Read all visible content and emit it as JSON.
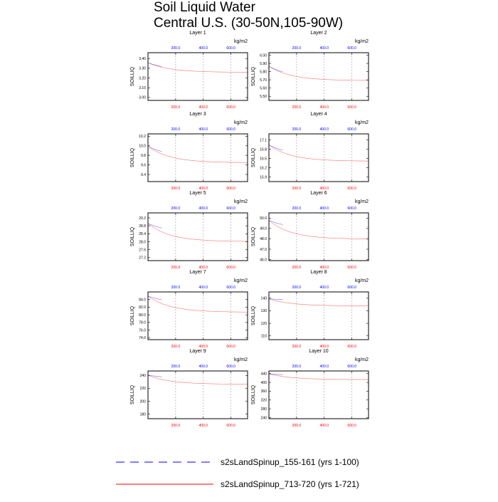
{
  "title": {
    "line1": "Soil Liquid Water",
    "line2": "Central U.S. (30-50N,105-90W)"
  },
  "legend": {
    "items": [
      {
        "label": "s2sLandSpinup_155-161 (yrs 1-100)",
        "color": "#0000ff",
        "dash": "dashed"
      },
      {
        "label": "s2sLandSpinup_713-720 (yrs 1-721)",
        "color": "#ff0000",
        "dash": "solid"
      }
    ]
  },
  "colors": {
    "series_blue": "#0000ff",
    "series_red": "#ff0000",
    "top_axis_labels": "#0000ff",
    "bottom_axis_labels": "#ff0000",
    "grid": "#888888"
  },
  "chart_data": [
    {
      "type": "line",
      "title": "Layer 1",
      "units": "kg/m2",
      "ylabel": "SOILLIQ",
      "yticks": [
        "3.00",
        "3.10",
        "3.20",
        "3.30",
        "3.40"
      ],
      "ylim": [
        2.97,
        3.46
      ],
      "top_xticks": [
        "200.0",
        "400.0",
        "600.0"
      ],
      "top_xlim": [
        0,
        720
      ],
      "bottom_xticks": [
        "200.0",
        "400.0",
        "600.0"
      ],
      "bottom_xlim": [
        0,
        720
      ],
      "grid": "vertical dashed",
      "series": [
        {
          "name": "s2sLandSpinup_155-161 (yrs 1-100)",
          "color": "#0000ff",
          "x_range": [
            0,
            100
          ],
          "mean_start": 3.32,
          "mean_end": 3.24,
          "amp_start": 0.13,
          "amp_end": 0.12
        },
        {
          "name": "s2sLandSpinup_713-720 (yrs 1-721)",
          "color": "#ff0000",
          "x_range": [
            0,
            721
          ],
          "mean_start": 3.32,
          "mean_end": 3.23,
          "amp_start": 0.13,
          "amp_end": 0.1
        }
      ]
    },
    {
      "type": "line",
      "title": "Layer 2",
      "units": "kg/m2",
      "ylabel": "SOILLIQ",
      "yticks": [
        "5.50",
        "5.60",
        "5.70",
        "5.80",
        "5.90",
        "6.00"
      ],
      "ylim": [
        5.45,
        6.03
      ],
      "top_xticks": [
        "200.0",
        "400.0",
        "600.0"
      ],
      "top_xlim": [
        0,
        720
      ],
      "bottom_xticks": [
        "200.0",
        "400.0",
        "600.0"
      ],
      "bottom_xlim": [
        0,
        720
      ],
      "grid": "vertical dashed",
      "series": [
        {
          "name": "s2sLandSpinup_155-161 (yrs 1-100)",
          "color": "#0000ff",
          "x_range": [
            0,
            100
          ],
          "mean_start": 5.82,
          "mean_end": 5.69,
          "amp_start": 0.16,
          "amp_end": 0.11
        },
        {
          "name": "s2sLandSpinup_713-720 (yrs 1-721)",
          "color": "#ff0000",
          "x_range": [
            0,
            721
          ],
          "mean_start": 5.82,
          "mean_end": 5.66,
          "amp_start": 0.16,
          "amp_end": 0.11
        }
      ]
    },
    {
      "type": "line",
      "title": "Layer 3",
      "units": "kg/m2",
      "ylabel": "SOILLIQ",
      "yticks": [
        "9.4",
        "9.6",
        "9.8",
        "10.0",
        "10.2"
      ],
      "ylim": [
        9.25,
        10.25
      ],
      "top_xticks": [
        "200.0",
        "400.0",
        "600.0"
      ],
      "top_xlim": [
        0,
        720
      ],
      "bottom_xticks": [
        "200.0",
        "400.0",
        "600.0"
      ],
      "bottom_xlim": [
        0,
        720
      ],
      "grid": "vertical dashed",
      "series": [
        {
          "name": "s2sLandSpinup_155-161 (yrs 1-100)",
          "color": "#0000ff",
          "x_range": [
            0,
            100
          ],
          "mean_start": 9.92,
          "mean_end": 9.7,
          "amp_start": 0.25,
          "amp_end": 0.18
        },
        {
          "name": "s2sLandSpinup_713-720 (yrs 1-721)",
          "color": "#ff0000",
          "x_range": [
            0,
            721
          ],
          "mean_start": 9.92,
          "mean_end": 9.6,
          "amp_start": 0.25,
          "amp_end": 0.16
        }
      ]
    },
    {
      "type": "line",
      "title": "Layer 4",
      "units": "kg/m2",
      "ylabel": "SOILLIQ",
      "yticks": [
        "15.9",
        "16.2",
        "16.5",
        "16.8",
        "17.1"
      ],
      "ylim": [
        15.75,
        17.3
      ],
      "top_xticks": [
        "200.0",
        "400.0",
        "600.0"
      ],
      "top_xlim": [
        0,
        720
      ],
      "bottom_xticks": [
        "200.0",
        "400.0",
        "600.0"
      ],
      "bottom_xlim": [
        0,
        720
      ],
      "grid": "vertical dashed",
      "series": [
        {
          "name": "s2sLandSpinup_155-161 (yrs 1-100)",
          "color": "#0000ff",
          "x_range": [
            0,
            100
          ],
          "mean_start": 16.85,
          "mean_end": 16.5,
          "amp_start": 0.32,
          "amp_end": 0.25
        },
        {
          "name": "s2sLandSpinup_713-720 (yrs 1-721)",
          "color": "#ff0000",
          "x_range": [
            0,
            721
          ],
          "mean_start": 16.85,
          "mean_end": 16.35,
          "amp_start": 0.32,
          "amp_end": 0.22
        }
      ]
    },
    {
      "type": "line",
      "title": "Layer 5",
      "units": "kg/m2",
      "ylabel": "SOILLIQ",
      "yticks": [
        "27.2",
        "27.6",
        "28.0",
        "28.4",
        "28.8",
        "29.2"
      ],
      "ylim": [
        27.05,
        29.45
      ],
      "top_xticks": [
        "200.0",
        "400.0",
        "600.0"
      ],
      "top_xlim": [
        0,
        720
      ],
      "bottom_xticks": [
        "200.0",
        "400.0",
        "600.0"
      ],
      "bottom_xlim": [
        0,
        720
      ],
      "grid": "vertical dashed",
      "series": [
        {
          "name": "s2sLandSpinup_155-161 (yrs 1-100)",
          "color": "#0000ff",
          "x_range": [
            0,
            100
          ],
          "mean_start": 28.75,
          "mean_end": 28.3,
          "amp_start": 0.6,
          "amp_end": 0.45
        },
        {
          "name": "s2sLandSpinup_713-720 (yrs 1-721)",
          "color": "#ff0000",
          "x_range": [
            0,
            721
          ],
          "mean_start": 28.75,
          "mean_end": 27.9,
          "amp_start": 0.6,
          "amp_end": 0.38
        }
      ]
    },
    {
      "type": "line",
      "title": "Layer 6",
      "units": "kg/m2",
      "ylabel": "SOILLIQ",
      "yticks": [
        "46.0",
        "47.0",
        "48.0",
        "49.0",
        "50.0"
      ],
      "ylim": [
        45.9,
        50.5
      ],
      "top_xticks": [
        "200.0",
        "400.0",
        "600.0"
      ],
      "top_xlim": [
        0,
        720
      ],
      "bottom_xticks": [
        "200.0",
        "400.0",
        "600.0"
      ],
      "bottom_xlim": [
        0,
        720
      ],
      "grid": "vertical dashed",
      "series": [
        {
          "name": "s2sLandSpinup_155-161 (yrs 1-100)",
          "color": "#0000ff",
          "x_range": [
            0,
            100
          ],
          "mean_start": 49.5,
          "mean_end": 48.7,
          "amp_start": 1.0,
          "amp_end": 0.7
        },
        {
          "name": "s2sLandSpinup_713-720 (yrs 1-721)",
          "color": "#ff0000",
          "x_range": [
            0,
            721
          ],
          "mean_start": 49.5,
          "mean_end": 47.8,
          "amp_start": 1.0,
          "amp_end": 0.6
        }
      ]
    },
    {
      "type": "line",
      "title": "Layer 7",
      "units": "kg/m2",
      "ylabel": "SOILLIQ",
      "yticks": [
        "74.0",
        "76.0",
        "78.0",
        "80.0",
        "82.0",
        "84.0"
      ],
      "ylim": [
        73.5,
        86.0
      ],
      "top_xticks": [
        "200.0",
        "400.0",
        "600.0"
      ],
      "top_xlim": [
        0,
        720
      ],
      "bottom_xticks": [
        "200.0",
        "400.0",
        "600.0"
      ],
      "bottom_xlim": [
        0,
        720
      ],
      "grid": "vertical dashed",
      "series": [
        {
          "name": "s2sLandSpinup_155-161 (yrs 1-100)",
          "color": "#0000ff",
          "x_range": [
            0,
            100
          ],
          "mean_start": 84.5,
          "mean_end": 82.5,
          "amp_start": 1.5,
          "amp_end": 1.1
        },
        {
          "name": "s2sLandSpinup_713-720 (yrs 1-721)",
          "color": "#ff0000",
          "x_range": [
            0,
            721
          ],
          "mean_start": 84.5,
          "mean_end": 80.4,
          "amp_start": 1.5,
          "amp_end": 1.0
        }
      ]
    },
    {
      "type": "line",
      "title": "Layer 8",
      "units": "kg/m2",
      "ylabel": "SOILLIQ",
      "yticks": [
        "110",
        "120",
        "130",
        "140"
      ],
      "ylim": [
        107,
        145
      ],
      "top_xticks": [
        "200.0",
        "400.0",
        "600.0"
      ],
      "top_xlim": [
        0,
        720
      ],
      "bottom_xticks": [
        "200.0",
        "400.0",
        "600.0"
      ],
      "bottom_xlim": [
        0,
        720
      ],
      "grid": "vertical dashed",
      "series": [
        {
          "name": "s2sLandSpinup_155-161 (yrs 1-100)",
          "color": "#0000ff",
          "x_range": [
            0,
            100
          ],
          "mean_start": 139,
          "mean_end": 138,
          "amp_start": 1.8,
          "amp_end": 1.3
        },
        {
          "name": "s2sLandSpinup_713-720 (yrs 1-721)",
          "color": "#ff0000",
          "x_range": [
            0,
            721
          ],
          "mean_start": 139,
          "mean_end": 133.5,
          "amp_start": 1.8,
          "amp_end": 1.2
        }
      ]
    },
    {
      "type": "line",
      "title": "Layer 9",
      "units": "kg/m2",
      "ylabel": "SOILLIQ",
      "yticks": [
        "180",
        "200",
        "220",
        "240"
      ],
      "ylim": [
        173,
        247
      ],
      "top_xticks": [
        "200.0",
        "400.0",
        "600.0"
      ],
      "top_xlim": [
        0,
        720
      ],
      "bottom_xticks": [
        "200.0",
        "400.0",
        "600.0"
      ],
      "bottom_xlim": [
        0,
        720
      ],
      "grid": "vertical dashed",
      "series": [
        {
          "name": "s2sLandSpinup_155-161 (yrs 1-100)",
          "color": "#0000ff",
          "x_range": [
            0,
            100
          ],
          "mean_start": 240,
          "mean_end": 235,
          "amp_start": 1.5,
          "amp_end": 1.2
        },
        {
          "name": "s2sLandSpinup_713-720 (yrs 1-721)",
          "color": "#ff0000",
          "x_range": [
            0,
            721
          ],
          "mean_start": 240,
          "mean_end": 226,
          "amp_start": 1.5,
          "amp_end": 1.2
        }
      ]
    },
    {
      "type": "line",
      "title": "Layer 10",
      "units": "kg/m2",
      "ylabel": "SOILLIQ",
      "yticks": [
        "240",
        "280",
        "320",
        "360",
        "400",
        "440"
      ],
      "ylim": [
        235,
        452
      ],
      "top_xticks": [
        "200.0",
        "400.0",
        "600.0"
      ],
      "top_xlim": [
        0,
        720
      ],
      "bottom_xticks": [
        "200.0",
        "400.0",
        "600.0"
      ],
      "bottom_xlim": [
        0,
        720
      ],
      "grid": "vertical dashed",
      "series": [
        {
          "name": "s2sLandSpinup_155-161 (yrs 1-100)",
          "color": "#0000ff",
          "x_range": [
            0,
            100
          ],
          "mean_start": 438,
          "mean_end": 430,
          "amp_start": 4,
          "amp_end": 3
        },
        {
          "name": "s2sLandSpinup_713-720 (yrs 1-721)",
          "color": "#ff0000",
          "x_range": [
            0,
            721
          ],
          "mean_start": 438,
          "mean_end": 412,
          "amp_start": 4,
          "amp_end": 3
        }
      ]
    }
  ]
}
